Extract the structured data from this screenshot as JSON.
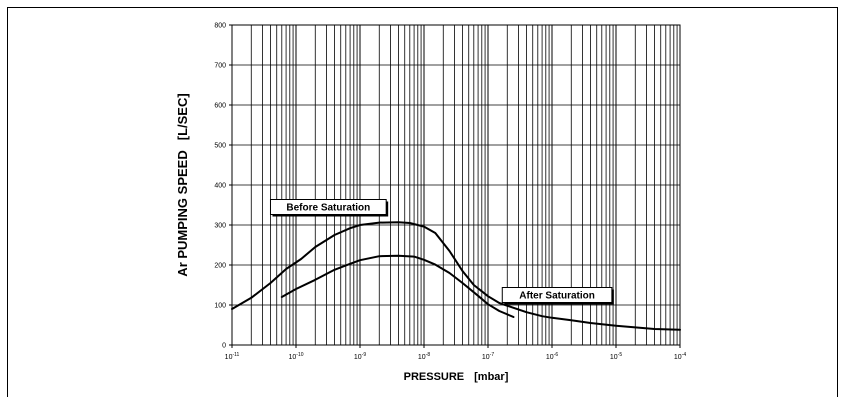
{
  "chart_data": {
    "type": "line",
    "title": "",
    "xlabel": "PRESSURE",
    "xlabel_unit": "[mbar]",
    "ylabel": "Ar PUMPING SPEED",
    "ylabel_unit": "[L/SEC]",
    "x_scale": "log",
    "xlim": [
      1e-11,
      0.0001
    ],
    "ylim": [
      0,
      800
    ],
    "grid": true,
    "legend": "none",
    "line_color": "#000000",
    "x_ticks": [
      {
        "value": 1e-11,
        "base": "10",
        "exp": "-11"
      },
      {
        "value": 1e-10,
        "base": "10",
        "exp": "-10"
      },
      {
        "value": 1e-09,
        "base": "10",
        "exp": "-9"
      },
      {
        "value": 1e-08,
        "base": "10",
        "exp": "-8"
      },
      {
        "value": 1e-07,
        "base": "10",
        "exp": "-7"
      },
      {
        "value": 1e-06,
        "base": "10",
        "exp": "-6"
      },
      {
        "value": 1e-05,
        "base": "10",
        "exp": "-5"
      },
      {
        "value": 0.0001,
        "base": "10",
        "exp": "-4"
      }
    ],
    "y_ticks": [
      "0",
      "100",
      "200",
      "300",
      "400",
      "500",
      "600",
      "700",
      "800"
    ],
    "series": [
      {
        "x": [
          1e-11,
          2e-11,
          4e-11,
          7e-11,
          1.2e-10,
          2e-10,
          4e-10,
          7e-10,
          1e-09,
          2e-09,
          4e-09,
          6e-09,
          1e-08,
          1.5e-08,
          2.5e-08,
          4e-08,
          6e-08,
          1e-07,
          1.5e-07,
          2.5e-07,
          4e-07,
          7e-07,
          1e-06,
          2e-06,
          4e-06,
          1e-05,
          2e-05,
          4e-05,
          0.0001
        ],
        "y": [
          90,
          118,
          155,
          190,
          215,
          245,
          275,
          292,
          300,
          306,
          307,
          305,
          296,
          280,
          235,
          185,
          150,
          122,
          105,
          93,
          82,
          72,
          68,
          62,
          55,
          48,
          44,
          40,
          38
        ]
      },
      {
        "x": [
          6e-11,
          1e-10,
          2e-10,
          4e-10,
          7e-10,
          1e-09,
          2e-09,
          4e-09,
          7e-09,
          1e-08,
          1.5e-08,
          2.5e-08,
          4e-08,
          7e-08,
          1e-07,
          1.5e-07,
          2.5e-07
        ],
        "y": [
          120,
          140,
          163,
          188,
          203,
          212,
          222,
          223,
          221,
          213,
          201,
          180,
          155,
          123,
          102,
          85,
          70
        ]
      }
    ],
    "annotations": [
      {
        "text": "Before Saturation",
        "x": 3.2e-10,
        "y": 345
      },
      {
        "text": "After Saturation",
        "x": 1.2e-06,
        "y": 125
      }
    ]
  }
}
